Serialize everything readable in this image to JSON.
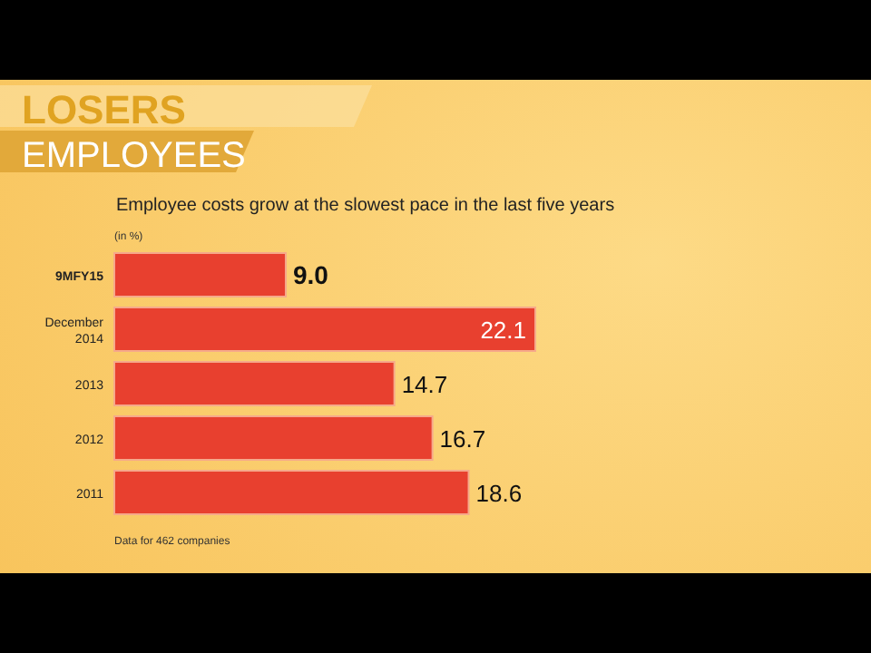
{
  "chart_data": {
    "type": "bar",
    "orientation": "horizontal",
    "title": "LOSERS",
    "subtitle": "EMPLOYEES",
    "annotations": [
      "Employee costs grow at the slowest pace in the last five years",
      "(in %)",
      "Data for 462 companies"
    ],
    "categories": [
      "9MFY15",
      "December 2014",
      "2013",
      "2012",
      "2011"
    ],
    "values": [
      9.0,
      22.1,
      14.7,
      16.7,
      18.6
    ],
    "value_labels": [
      "9.0",
      "22.1",
      "14.7",
      "16.7",
      "18.6"
    ],
    "color": "#e8402f"
  }
}
